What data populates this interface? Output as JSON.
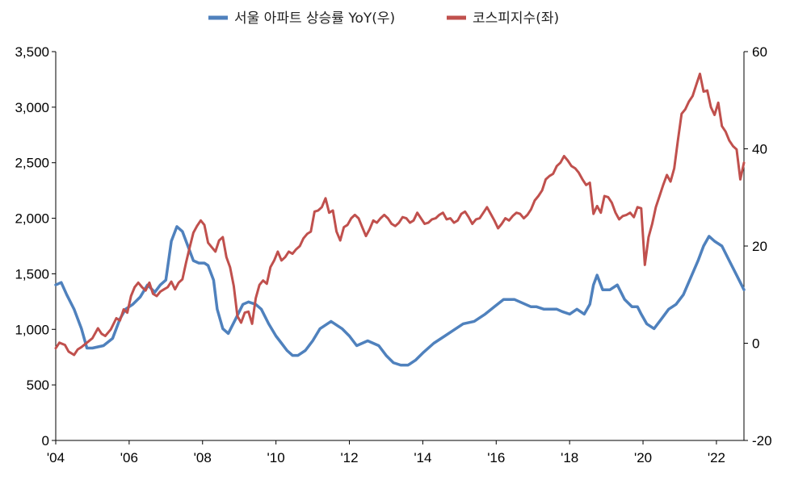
{
  "chart_data": {
    "type": "line",
    "title": "",
    "legend_position": "top-center",
    "grid": false,
    "x_range": [
      2004.0,
      2022.75
    ],
    "x_ticks": [
      {
        "value": 2004,
        "label": "'04"
      },
      {
        "value": 2006,
        "label": "'06"
      },
      {
        "value": 2008,
        "label": "'08"
      },
      {
        "value": 2010,
        "label": "'10"
      },
      {
        "value": 2012,
        "label": "'12"
      },
      {
        "value": 2014,
        "label": "'14"
      },
      {
        "value": 2016,
        "label": "'16"
      },
      {
        "value": 2018,
        "label": "'18"
      },
      {
        "value": 2020,
        "label": "'20"
      },
      {
        "value": 2022,
        "label": "'22"
      }
    ],
    "y_left": {
      "ylim": [
        0,
        3500
      ],
      "ticks": [
        {
          "value": 0,
          "label": "0"
        },
        {
          "value": 500,
          "label": "500"
        },
        {
          "value": 1000,
          "label": "1,000"
        },
        {
          "value": 1500,
          "label": "1,500"
        },
        {
          "value": 2000,
          "label": "2,000"
        },
        {
          "value": 2500,
          "label": "2,500"
        },
        {
          "value": 3000,
          "label": "3,000"
        },
        {
          "value": 3500,
          "label": "3,500"
        }
      ]
    },
    "y_right": {
      "ylim": [
        -20,
        60
      ],
      "ticks": [
        {
          "value": -20,
          "label": "-20"
        },
        {
          "value": 0,
          "label": "0"
        },
        {
          "value": 20,
          "label": "20"
        },
        {
          "value": 40,
          "label": "40"
        },
        {
          "value": 60,
          "label": "60"
        }
      ]
    },
    "series": [
      {
        "name": "서울 아파트 상승률 YoY(우)",
        "axis": "right",
        "color": "#4F81BD",
        "x": [
          2004.0,
          2004.15,
          2004.3,
          2004.5,
          2004.7,
          2004.85,
          2005.0,
          2005.3,
          2005.55,
          2005.75,
          2005.9,
          2006.1,
          2006.3,
          2006.5,
          2006.7,
          2006.85,
          2007.0,
          2007.15,
          2007.3,
          2007.45,
          2007.6,
          2007.75,
          2007.9,
          2008.05,
          2008.15,
          2008.3,
          2008.4,
          2008.55,
          2008.7,
          2008.9,
          2009.1,
          2009.25,
          2009.45,
          2009.6,
          2009.8,
          2010.0,
          2010.15,
          2010.3,
          2010.45,
          2010.6,
          2010.8,
          2011.0,
          2011.2,
          2011.5,
          2011.8,
          2012.0,
          2012.2,
          2012.5,
          2012.8,
          2013.0,
          2013.2,
          2013.4,
          2013.6,
          2013.8,
          2014.0,
          2014.3,
          2014.6,
          2014.8,
          2015.1,
          2015.4,
          2015.7,
          2015.95,
          2016.2,
          2016.5,
          2016.8,
          2016.95,
          2017.1,
          2017.3,
          2017.5,
          2017.65,
          2017.8,
          2018.0,
          2018.2,
          2018.4,
          2018.55,
          2018.65,
          2018.75,
          2018.9,
          2019.1,
          2019.3,
          2019.5,
          2019.7,
          2019.85,
          2019.95,
          2020.1,
          2020.3,
          2020.5,
          2020.7,
          2020.9,
          2021.1,
          2021.3,
          2021.5,
          2021.65,
          2021.8,
          2021.95,
          2022.15,
          2022.35,
          2022.55,
          2022.75
        ],
        "y": [
          12,
          12.5,
          10,
          7,
          3,
          -1,
          -1,
          -0.5,
          1,
          5,
          7,
          8,
          9.5,
          12,
          10.5,
          12,
          13,
          21,
          24,
          23,
          20,
          17,
          16.5,
          16.5,
          16,
          13,
          7,
          3,
          2,
          5,
          8,
          8.5,
          8,
          7,
          4,
          1.5,
          0,
          -1.5,
          -2.5,
          -2.5,
          -1.5,
          0.5,
          3,
          4.5,
          3,
          1.5,
          -0.5,
          0.5,
          -0.5,
          -2.5,
          -4,
          -4.5,
          -4.5,
          -3.5,
          -2,
          0,
          1.5,
          2.5,
          4,
          4.5,
          6,
          7.5,
          9,
          9,
          8,
          7.5,
          7.5,
          7,
          7,
          7,
          6.5,
          6,
          7,
          6,
          8,
          12,
          14,
          11,
          11,
          12,
          9,
          7.5,
          7.5,
          6,
          4,
          3,
          5,
          7,
          8,
          10,
          13.5,
          17,
          20,
          22,
          21,
          20,
          17,
          14,
          11
        ]
      },
      {
        "name": "코스피지수(좌)",
        "axis": "left",
        "color": "#C0504D",
        "x": [
          2004.0,
          2004.1,
          2004.25,
          2004.35,
          2004.5,
          2004.6,
          2004.7,
          2004.85,
          2005.0,
          2005.15,
          2005.25,
          2005.35,
          2005.5,
          2005.65,
          2005.75,
          2005.85,
          2005.95,
          2006.05,
          2006.15,
          2006.25,
          2006.35,
          2006.45,
          2006.55,
          2006.65,
          2006.75,
          2006.85,
          2006.95,
          2007.05,
          2007.15,
          2007.25,
          2007.35,
          2007.45,
          2007.55,
          2007.65,
          2007.75,
          2007.85,
          2007.95,
          2008.05,
          2008.15,
          2008.25,
          2008.35,
          2008.45,
          2008.55,
          2008.65,
          2008.75,
          2008.85,
          2008.95,
          2009.05,
          2009.15,
          2009.25,
          2009.35,
          2009.45,
          2009.55,
          2009.65,
          2009.75,
          2009.85,
          2009.95,
          2010.05,
          2010.15,
          2010.25,
          2010.35,
          2010.45,
          2010.55,
          2010.65,
          2010.75,
          2010.85,
          2010.95,
          2011.05,
          2011.15,
          2011.25,
          2011.35,
          2011.45,
          2011.55,
          2011.65,
          2011.75,
          2011.85,
          2011.95,
          2012.05,
          2012.15,
          2012.25,
          2012.35,
          2012.45,
          2012.55,
          2012.65,
          2012.75,
          2012.85,
          2012.95,
          2013.05,
          2013.15,
          2013.25,
          2013.35,
          2013.45,
          2013.55,
          2013.65,
          2013.75,
          2013.85,
          2013.95,
          2014.05,
          2014.15,
          2014.25,
          2014.35,
          2014.45,
          2014.55,
          2014.65,
          2014.75,
          2014.85,
          2014.95,
          2015.05,
          2015.15,
          2015.25,
          2015.35,
          2015.45,
          2015.55,
          2015.65,
          2015.75,
          2015.85,
          2015.95,
          2016.05,
          2016.15,
          2016.25,
          2016.35,
          2016.45,
          2016.55,
          2016.65,
          2016.75,
          2016.85,
          2016.95,
          2017.05,
          2017.15,
          2017.25,
          2017.35,
          2017.45,
          2017.55,
          2017.65,
          2017.75,
          2017.85,
          2017.95,
          2018.05,
          2018.15,
          2018.25,
          2018.35,
          2018.45,
          2018.55,
          2018.65,
          2018.75,
          2018.85,
          2018.95,
          2019.05,
          2019.15,
          2019.25,
          2019.35,
          2019.45,
          2019.55,
          2019.65,
          2019.75,
          2019.85,
          2019.95,
          2020.05,
          2020.15,
          2020.25,
          2020.35,
          2020.45,
          2020.55,
          2020.65,
          2020.75,
          2020.85,
          2020.95,
          2021.05,
          2021.15,
          2021.25,
          2021.35,
          2021.45,
          2021.55,
          2021.65,
          2021.75,
          2021.85,
          2021.95,
          2022.05,
          2022.15,
          2022.25,
          2022.35,
          2022.45,
          2022.55,
          2022.65,
          2022.75
        ],
        "y": [
          830,
          880,
          860,
          800,
          770,
          820,
          840,
          880,
          920,
          1010,
          960,
          940,
          1000,
          1100,
          1080,
          1180,
          1150,
          1300,
          1380,
          1420,
          1380,
          1350,
          1420,
          1320,
          1300,
          1340,
          1360,
          1380,
          1430,
          1360,
          1420,
          1450,
          1600,
          1740,
          1870,
          1930,
          1980,
          1940,
          1780,
          1740,
          1700,
          1800,
          1830,
          1650,
          1560,
          1390,
          1120,
          1060,
          1150,
          1160,
          1050,
          1280,
          1400,
          1440,
          1410,
          1560,
          1620,
          1700,
          1620,
          1650,
          1700,
          1680,
          1720,
          1750,
          1820,
          1860,
          1880,
          2060,
          2070,
          2100,
          2180,
          2050,
          2070,
          1880,
          1800,
          1920,
          1940,
          2000,
          2030,
          2000,
          1920,
          1840,
          1900,
          1980,
          1960,
          2000,
          2030,
          2000,
          1950,
          1930,
          1960,
          2010,
          2000,
          1960,
          1980,
          2050,
          2000,
          1950,
          1960,
          1990,
          2000,
          2030,
          2050,
          1990,
          2000,
          1960,
          1980,
          2040,
          2060,
          2010,
          1950,
          1990,
          2000,
          2050,
          2100,
          2040,
          1980,
          1910,
          1950,
          2000,
          1980,
          2020,
          2050,
          2040,
          2000,
          2030,
          2080,
          2160,
          2200,
          2250,
          2350,
          2380,
          2400,
          2470,
          2500,
          2560,
          2520,
          2470,
          2450,
          2410,
          2350,
          2300,
          2320,
          2040,
          2110,
          2050,
          2200,
          2190,
          2140,
          2050,
          1990,
          2020,
          2030,
          2050,
          2010,
          2100,
          2090,
          1580,
          1830,
          1950,
          2100,
          2200,
          2300,
          2390,
          2330,
          2450,
          2700,
          2940,
          2980,
          3050,
          3100,
          3200,
          3300,
          3140,
          3150,
          3000,
          2930,
          3040,
          2830,
          2780,
          2700,
          2650,
          2620,
          2350,
          2500
        ],
        "step_note": ""
      }
    ]
  }
}
